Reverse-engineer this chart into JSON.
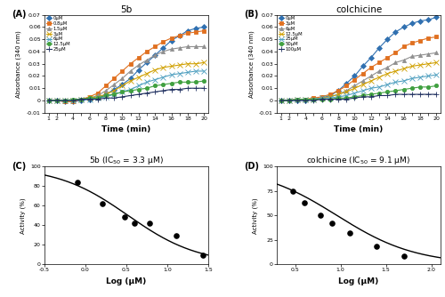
{
  "panel_A_title": "5b",
  "panel_B_title": "colchicine",
  "panel_C_title": "5b (IC$_{50}$ = 3.3 μM)",
  "panel_D_title": "colchicine (IC$_{50}$ = 9.1 μM)",
  "time": [
    1,
    2,
    3,
    4,
    5,
    6,
    7,
    8,
    9,
    10,
    11,
    12,
    13,
    14,
    15,
    16,
    17,
    18,
    19,
    20
  ],
  "A_labels": [
    "0μM",
    "0.8μM",
    "1.5μM",
    "3μM",
    "6μM",
    "12.5μM",
    "25μM"
  ],
  "A_colors": [
    "#3070b0",
    "#e07020",
    "#909090",
    "#d0a000",
    "#50a0c0",
    "#40a040",
    "#203060"
  ],
  "A_markers": [
    "D",
    "s",
    "^",
    "x",
    "x",
    "o",
    "+"
  ],
  "A_markersizes": [
    3,
    3,
    3,
    4,
    4,
    3,
    4
  ],
  "A_data": [
    [
      0,
      0,
      -0.001,
      -0.001,
      0.0,
      0.001,
      0.002,
      0.005,
      0.009,
      0.013,
      0.018,
      0.025,
      0.031,
      0.037,
      0.043,
      0.049,
      0.053,
      0.057,
      0.059,
      0.06
    ],
    [
      0,
      0,
      -0.001,
      -0.001,
      0.001,
      0.003,
      0.006,
      0.012,
      0.018,
      0.024,
      0.03,
      0.035,
      0.04,
      0.044,
      0.048,
      0.051,
      0.053,
      0.055,
      0.056,
      0.057
    ],
    [
      0,
      0,
      0.0,
      0.0,
      0.001,
      0.002,
      0.004,
      0.008,
      0.013,
      0.018,
      0.024,
      0.029,
      0.033,
      0.037,
      0.04,
      0.042,
      0.043,
      0.044,
      0.044,
      0.044
    ],
    [
      0,
      0,
      0.0,
      0.0,
      0.001,
      0.002,
      0.003,
      0.005,
      0.008,
      0.012,
      0.016,
      0.019,
      0.022,
      0.025,
      0.027,
      0.028,
      0.029,
      0.03,
      0.03,
      0.031
    ],
    [
      0,
      0,
      0.0,
      0.0,
      0.001,
      0.001,
      0.002,
      0.003,
      0.005,
      0.007,
      0.009,
      0.012,
      0.015,
      0.017,
      0.019,
      0.021,
      0.022,
      0.023,
      0.024,
      0.024
    ],
    [
      0,
      0,
      0.0,
      0.001,
      0.001,
      0.002,
      0.002,
      0.004,
      0.005,
      0.007,
      0.008,
      0.009,
      0.01,
      0.012,
      0.013,
      0.014,
      0.015,
      0.015,
      0.015,
      0.016
    ],
    [
      0,
      0,
      0.0,
      0.0,
      0.001,
      0.001,
      0.001,
      0.002,
      0.002,
      0.003,
      0.004,
      0.005,
      0.006,
      0.007,
      0.008,
      0.009,
      0.009,
      0.01,
      0.01,
      0.01
    ]
  ],
  "B_labels": [
    "0μM",
    "3μM",
    "6μM",
    "12.5μM",
    "25μM",
    "50μM",
    "100μM"
  ],
  "B_colors": [
    "#3070b0",
    "#e07020",
    "#909090",
    "#d0a000",
    "#50a0c0",
    "#40a040",
    "#203060"
  ],
  "B_markers": [
    "D",
    "s",
    "^",
    "x",
    "x",
    "o",
    "+"
  ],
  "B_markersizes": [
    3,
    3,
    3,
    4,
    4,
    3,
    4
  ],
  "B_data": [
    [
      0,
      0,
      0.0,
      0.0,
      0.001,
      0.002,
      0.004,
      0.008,
      0.014,
      0.02,
      0.028,
      0.035,
      0.043,
      0.05,
      0.056,
      0.06,
      0.063,
      0.065,
      0.066,
      0.068
    ],
    [
      0,
      0,
      0.001,
      0.001,
      0.002,
      0.003,
      0.005,
      0.008,
      0.012,
      0.017,
      0.022,
      0.027,
      0.031,
      0.035,
      0.039,
      0.044,
      0.047,
      0.049,
      0.051,
      0.052
    ],
    [
      0,
      0,
      0.001,
      0.001,
      0.001,
      0.002,
      0.003,
      0.005,
      0.008,
      0.012,
      0.016,
      0.02,
      0.024,
      0.027,
      0.031,
      0.033,
      0.036,
      0.037,
      0.038,
      0.039
    ],
    [
      0,
      0,
      0.001,
      0.001,
      0.001,
      0.002,
      0.003,
      0.005,
      0.007,
      0.01,
      0.013,
      0.016,
      0.019,
      0.022,
      0.024,
      0.026,
      0.028,
      0.029,
      0.03,
      0.031
    ],
    [
      0,
      0,
      0.001,
      0.001,
      0.001,
      0.002,
      0.002,
      0.003,
      0.004,
      0.006,
      0.008,
      0.01,
      0.011,
      0.013,
      0.015,
      0.016,
      0.018,
      0.019,
      0.02,
      0.021
    ],
    [
      0,
      0,
      0.001,
      0.001,
      0.001,
      0.001,
      0.001,
      0.002,
      0.002,
      0.003,
      0.004,
      0.005,
      0.006,
      0.007,
      0.008,
      0.009,
      0.01,
      0.011,
      0.011,
      0.012
    ],
    [
      0,
      0,
      0.0,
      0.0,
      0.0,
      0.001,
      0.001,
      0.001,
      0.001,
      0.002,
      0.003,
      0.003,
      0.004,
      0.004,
      0.005,
      0.005,
      0.005,
      0.005,
      0.005,
      0.005
    ]
  ],
  "C_x": [
    -0.097,
    0.204,
    0.477,
    0.602,
    0.778,
    1.114,
    1.431
  ],
  "C_y": [
    84,
    62,
    48,
    42,
    42,
    29,
    9
  ],
  "D_x": [
    0.477,
    0.602,
    0.778,
    0.903,
    1.097,
    1.398,
    1.699
  ],
  "D_y": [
    75,
    63,
    50,
    42,
    32,
    18,
    8
  ],
  "ylabel_abs": "Absorbance (340 nm)",
  "xlabel_time": "Time (min)",
  "ylabel_act": "Activity (%)",
  "xlabel_log": "Log (μM)",
  "ylim_abs": [
    -0.01,
    0.07
  ],
  "yticks_abs": [
    -0.01,
    0,
    0.01,
    0.02,
    0.03,
    0.04,
    0.05,
    0.06,
    0.07
  ],
  "ytick_labels_abs": [
    "-0.01",
    "0",
    "0.01",
    "0.02",
    "0.03",
    "0.04",
    "0.05",
    "0.06",
    "0.07"
  ]
}
